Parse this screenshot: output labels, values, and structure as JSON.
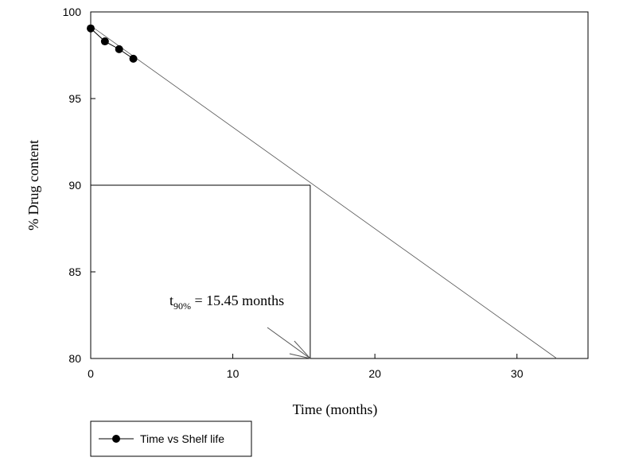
{
  "chart_data": {
    "type": "scatter",
    "xlabel": "Time (months)",
    "ylabel": "% Drug content",
    "xlim": [
      0,
      35
    ],
    "ylim": [
      80,
      100
    ],
    "xticks": [
      0,
      10,
      20,
      30
    ],
    "yticks": [
      80,
      85,
      90,
      95,
      100
    ],
    "grid": false,
    "legend_position": "bottom-left",
    "series": [
      {
        "name": "Time vs Shelf life",
        "x": [
          0,
          1,
          2,
          3
        ],
        "y": [
          99.05,
          98.3,
          97.85,
          97.3
        ],
        "marker": "filled-circle",
        "color": "#000000"
      }
    ],
    "regression_line": {
      "x": [
        0,
        32.8
      ],
      "y": [
        99.2,
        80
      ]
    },
    "reference_lines": {
      "horizontal": {
        "y": 90,
        "x_from": 0,
        "x_to": 15.45
      },
      "vertical": {
        "x": 15.45,
        "y_from": 80,
        "y_to": 90
      }
    },
    "annotation": {
      "t_main": "t",
      "t_sub": "90%",
      "text": " = 15.45 months",
      "arrow_target": [
        15.45,
        80
      ]
    }
  }
}
